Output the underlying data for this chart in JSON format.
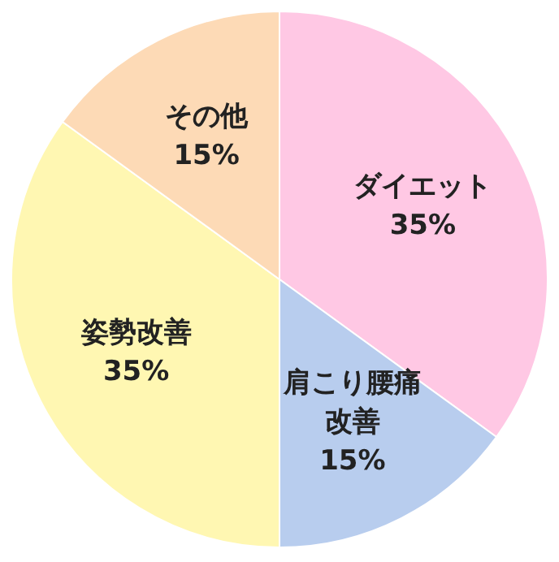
{
  "chart_data": {
    "type": "pie",
    "categories": [
      "ダイエット",
      "肩こり腰痛改善",
      "姿勢改善",
      "その他"
    ],
    "values": [
      35,
      15,
      35,
      15
    ],
    "colors": [
      "#ffc8e4",
      "#b8cdee",
      "#fff7b2",
      "#fddab6"
    ],
    "value_labels": [
      "35%",
      "15%",
      "35%",
      "15%"
    ]
  }
}
